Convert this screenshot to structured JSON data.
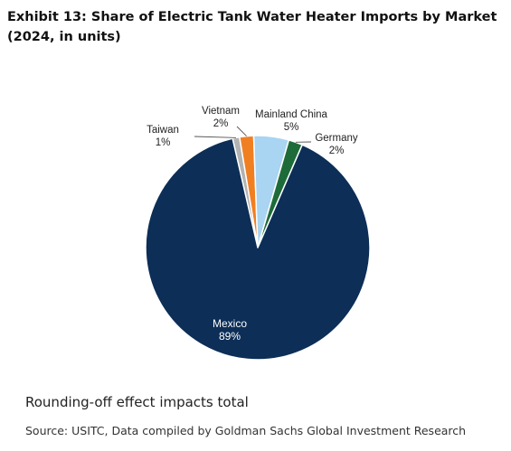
{
  "exhibit": {
    "title": "Exhibit 13: Share of Electric Tank Water Heater Imports by Market (2024, in units)"
  },
  "chart_data": {
    "type": "pie",
    "start_angle_deg": -13,
    "direction": "clockwise",
    "slices": [
      {
        "label": "Taiwan",
        "value": 1,
        "value_text": "1%",
        "color": "#b2b2b2"
      },
      {
        "label": "Vietnam",
        "value": 2,
        "value_text": "2%",
        "color": "#f07f22"
      },
      {
        "label": "Mainland China",
        "value": 5,
        "value_text": "5%",
        "color": "#a9d4f2"
      },
      {
        "label": "Germany",
        "value": 2,
        "value_text": "2%",
        "color": "#1e6b3a"
      },
      {
        "label": "Mexico",
        "value": 89,
        "value_text": "89%",
        "color": "#0c2e57"
      }
    ]
  },
  "footer": {
    "note": "Rounding-off effect impacts total",
    "source": "Source: USITC, Data compiled by Goldman Sachs Global Investment Research"
  }
}
